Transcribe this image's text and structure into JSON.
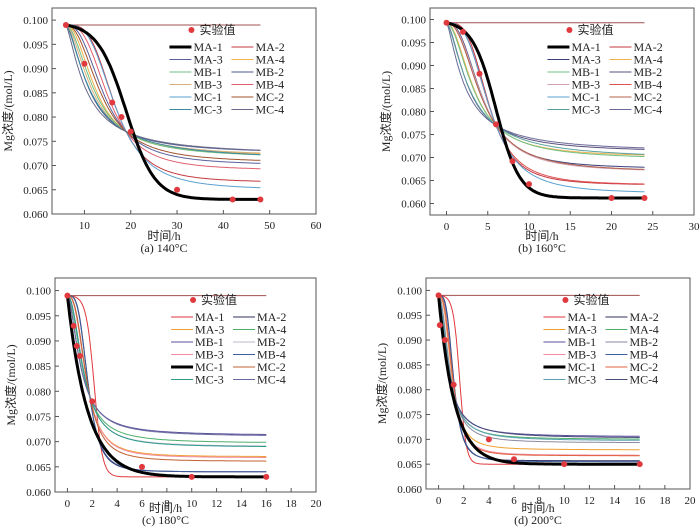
{
  "figure": {
    "legend_marker_label": "实验值",
    "series_names": [
      "MA-1",
      "MA-2",
      "MA-3",
      "MA-4",
      "MB-1",
      "MB-2",
      "MB-3",
      "MB-4",
      "MC-1",
      "MC-2",
      "MC-3",
      "MC-4"
    ]
  },
  "chart_data": [
    {
      "type": "line",
      "caption": "(a) 140°C",
      "xlabel": "时间/h",
      "ylabel": "Mg浓度/(mol/L)",
      "xlim": [
        3,
        60
      ],
      "ylim": [
        0.06,
        0.1025
      ],
      "xticks": [
        10,
        20,
        30,
        40,
        50,
        60
      ],
      "yticks": [
        0.06,
        0.065,
        0.07,
        0.075,
        0.08,
        0.085,
        0.09,
        0.095,
        0.1
      ],
      "legend_position": "top-right",
      "baseline_line": {
        "y": 0.099,
        "x_range": [
          6,
          48
        ]
      },
      "experimental_points": {
        "name": "实验值",
        "color": "#e0393e",
        "x": [
          6,
          10,
          16,
          18,
          20,
          30,
          42,
          48
        ],
        "y": [
          0.099,
          0.091,
          0.083,
          0.08,
          0.077,
          0.065,
          0.063,
          0.063
        ]
      },
      "cross_point": {
        "x": 19,
        "y": 0.077
      },
      "x_range": [
        6,
        48
      ],
      "y0": 0.099,
      "series": [
        {
          "name": "MA-1",
          "color": "#000000",
          "bold": true,
          "end": 0.063,
          "shape": "sigmoid"
        },
        {
          "name": "MA-2",
          "color": "#c4373f",
          "end": 0.0665,
          "sharp": 2.2
        },
        {
          "name": "MA-3",
          "color": "#5a5f9c",
          "end": 0.07,
          "sharp": 1.5
        },
        {
          "name": "MA-4",
          "color": "#f0b14a",
          "end": 0.072,
          "sharp": 1.2
        },
        {
          "name": "MB-1",
          "color": "#6fbf83",
          "end": 0.0715,
          "sharp": 1.0
        },
        {
          "name": "MB-2",
          "color": "#4f5a8c",
          "end": 0.0723,
          "sharp": 0.8
        },
        {
          "name": "MB-3",
          "color": "#d7b07a",
          "end": 0.0718,
          "sharp": 0.9
        },
        {
          "name": "MB-4",
          "color": "#e06070",
          "end": 0.069,
          "sharp": 1.8
        },
        {
          "name": "MC-1",
          "color": "#5aa0d0",
          "end": 0.065,
          "sharp": 2.0
        },
        {
          "name": "MC-2",
          "color": "#a0522d",
          "end": 0.0705,
          "sharp": 1.3
        },
        {
          "name": "MC-3",
          "color": "#3a8aa0",
          "end": 0.071,
          "sharp": 0.7
        },
        {
          "name": "MC-4",
          "color": "#6a6a8a",
          "end": 0.072,
          "sharp": 0.6
        }
      ]
    },
    {
      "type": "line",
      "caption": "(b) 160°C",
      "xlabel": "时间/h",
      "ylabel": "Mg浓度/(mol/L)",
      "xlim": [
        -2,
        30
      ],
      "ylim": [
        0.0575,
        0.1025
      ],
      "xticks": [
        0,
        5,
        10,
        15,
        20,
        25,
        30
      ],
      "yticks": [
        0.06,
        0.065,
        0.07,
        0.075,
        0.08,
        0.085,
        0.09,
        0.095,
        0.1
      ],
      "legend_position": "top-right",
      "baseline_line": {
        "y": 0.0993,
        "x_range": [
          0,
          24
        ]
      },
      "experimental_points": {
        "name": "实验值",
        "color": "#e0393e",
        "x": [
          0,
          2,
          4,
          6,
          8,
          10,
          20,
          24
        ],
        "y": [
          0.0993,
          0.0973,
          0.0882,
          0.0772,
          0.0692,
          0.0642,
          0.0612,
          0.0612
        ]
      },
      "cross_point": {
        "x": 6,
        "y": 0.077
      },
      "x_range": [
        0,
        24
      ],
      "y0": 0.0993,
      "series": [
        {
          "name": "MA-1",
          "color": "#000000",
          "bold": true,
          "end": 0.0612,
          "shape": "sigmoid"
        },
        {
          "name": "MA-2",
          "color": "#c4373f",
          "end": 0.064,
          "sharp": 2.2
        },
        {
          "name": "MA-3",
          "color": "#3a3f7c",
          "end": 0.0675,
          "sharp": 1.5
        },
        {
          "name": "MA-4",
          "color": "#f0b14a",
          "end": 0.07,
          "sharp": 1.1
        },
        {
          "name": "MB-1",
          "color": "#6fbf83",
          "end": 0.0695,
          "sharp": 1.0
        },
        {
          "name": "MB-2",
          "color": "#5a4f7c",
          "end": 0.071,
          "sharp": 0.8
        },
        {
          "name": "MB-3",
          "color": "#d0a0b0",
          "end": 0.0668,
          "sharp": 1.4
        },
        {
          "name": "MB-4",
          "color": "#e05050",
          "end": 0.064,
          "sharp": 2.0
        },
        {
          "name": "MC-1",
          "color": "#5aa0d0",
          "end": 0.0622,
          "sharp": 1.9
        },
        {
          "name": "MC-2",
          "color": "#b0604a",
          "end": 0.0668,
          "sharp": 1.3
        },
        {
          "name": "MC-3",
          "color": "#5aa0a0",
          "end": 0.0695,
          "sharp": 0.7
        },
        {
          "name": "MC-4",
          "color": "#6a6a9a",
          "end": 0.071,
          "sharp": 0.6
        }
      ]
    },
    {
      "type": "line",
      "caption": "(c) 180°C",
      "xlabel": "时间/h",
      "ylabel": "Mg浓度/(mol/L)",
      "xlim": [
        -1,
        20
      ],
      "ylim": [
        0.06,
        0.1025
      ],
      "xticks": [
        0,
        2,
        4,
        6,
        8,
        10,
        12,
        14,
        16,
        18,
        20
      ],
      "yticks": [
        0.06,
        0.065,
        0.07,
        0.075,
        0.08,
        0.085,
        0.09,
        0.095,
        0.1
      ],
      "legend_position": "top-right",
      "baseline_line": {
        "y": 0.099,
        "x_range": [
          0,
          16
        ]
      },
      "experimental_points": {
        "name": "实验值",
        "color": "#e0393e",
        "x": [
          0,
          0.5,
          0.75,
          1,
          2,
          6,
          10,
          16
        ],
        "y": [
          0.099,
          0.093,
          0.089,
          0.087,
          0.078,
          0.065,
          0.063,
          0.063
        ]
      },
      "cross_point": {
        "x": 1.8,
        "y": 0.079
      },
      "x_range": [
        0,
        16
      ],
      "y0": 0.099,
      "series": [
        {
          "name": "MA-1",
          "color": "#e0393e",
          "end": 0.063,
          "shape": "sigmoid-fast"
        },
        {
          "name": "MA-2",
          "color": "#2f2f5f",
          "end": 0.064,
          "sharp": 2.4
        },
        {
          "name": "MA-3",
          "color": "#f0a030",
          "end": 0.067,
          "sharp": 1.6
        },
        {
          "name": "MA-4",
          "color": "#4caf6a",
          "end": 0.0697,
          "sharp": 1.1
        },
        {
          "name": "MB-1",
          "color": "#5a4f9c",
          "end": 0.0712,
          "sharp": 0.9
        },
        {
          "name": "MB-2",
          "color": "#b8b8c8",
          "end": 0.069,
          "sharp": 1.2
        },
        {
          "name": "MB-3",
          "color": "#f08aa0",
          "end": 0.0668,
          "sharp": 1.6
        },
        {
          "name": "MB-4",
          "color": "#3f5f9f",
          "end": 0.064,
          "sharp": 2.3
        },
        {
          "name": "MC-1",
          "color": "#000000",
          "bold": true,
          "end": 0.063,
          "shape": "exp"
        },
        {
          "name": "MC-2",
          "color": "#c06030",
          "end": 0.0661,
          "sharp": 1.7
        },
        {
          "name": "MC-3",
          "color": "#2a9a8a",
          "end": 0.0689,
          "sharp": 1.2
        },
        {
          "name": "MC-4",
          "color": "#6a6aa0",
          "end": 0.071,
          "sharp": 0.9
        }
      ]
    },
    {
      "type": "line",
      "caption": "(d) 200°C",
      "xlabel": "时间/h",
      "ylabel": "Mg浓度/(mol/L)",
      "xlim": [
        -1,
        20
      ],
      "ylim": [
        0.06,
        0.1025
      ],
      "xticks": [
        0,
        2,
        4,
        6,
        8,
        10,
        12,
        14,
        16,
        18,
        20
      ],
      "yticks": [
        0.06,
        0.065,
        0.07,
        0.075,
        0.08,
        0.085,
        0.09,
        0.095,
        0.1
      ],
      "legend_position": "top-right",
      "baseline_line": {
        "y": 0.099,
        "x_range": [
          0,
          16
        ]
      },
      "experimental_points": {
        "name": "实验值",
        "color": "#e0393e",
        "x": [
          0,
          0.1,
          0.5,
          1.2,
          4,
          6,
          10,
          16
        ],
        "y": [
          0.099,
          0.093,
          0.09,
          0.081,
          0.07,
          0.066,
          0.065,
          0.065
        ]
      },
      "cross_point": {
        "x": 1.4,
        "y": 0.0775
      },
      "x_range": [
        0,
        16
      ],
      "y0": 0.099,
      "series": [
        {
          "name": "MA-1",
          "color": "#e0393e",
          "end": 0.065,
          "shape": "sigmoid-fast"
        },
        {
          "name": "MA-2",
          "color": "#2f2f5f",
          "end": 0.0657,
          "sharp": 2.4
        },
        {
          "name": "MA-3",
          "color": "#f0a030",
          "end": 0.0679,
          "sharp": 1.6
        },
        {
          "name": "MA-4",
          "color": "#4caf6a",
          "end": 0.07,
          "sharp": 1.1
        },
        {
          "name": "MB-1",
          "color": "#5a4f9c",
          "end": 0.0705,
          "sharp": 0.9
        },
        {
          "name": "MB-2",
          "color": "#8a8aa0",
          "end": 0.0693,
          "sharp": 1.2
        },
        {
          "name": "MB-3",
          "color": "#f08aa0",
          "end": 0.0668,
          "sharp": 1.7
        },
        {
          "name": "MB-4",
          "color": "#3f5f9f",
          "end": 0.0655,
          "sharp": 2.2
        },
        {
          "name": "MC-1",
          "color": "#000000",
          "bold": true,
          "end": 0.065,
          "shape": "exp"
        },
        {
          "name": "MC-2",
          "color": "#e06040",
          "end": 0.0667,
          "sharp": 1.8
        },
        {
          "name": "MC-3",
          "color": "#5aa0b0",
          "end": 0.0697,
          "sharp": 1.0
        },
        {
          "name": "MC-4",
          "color": "#4a4a7a",
          "end": 0.0702,
          "sharp": 0.8
        }
      ]
    }
  ]
}
